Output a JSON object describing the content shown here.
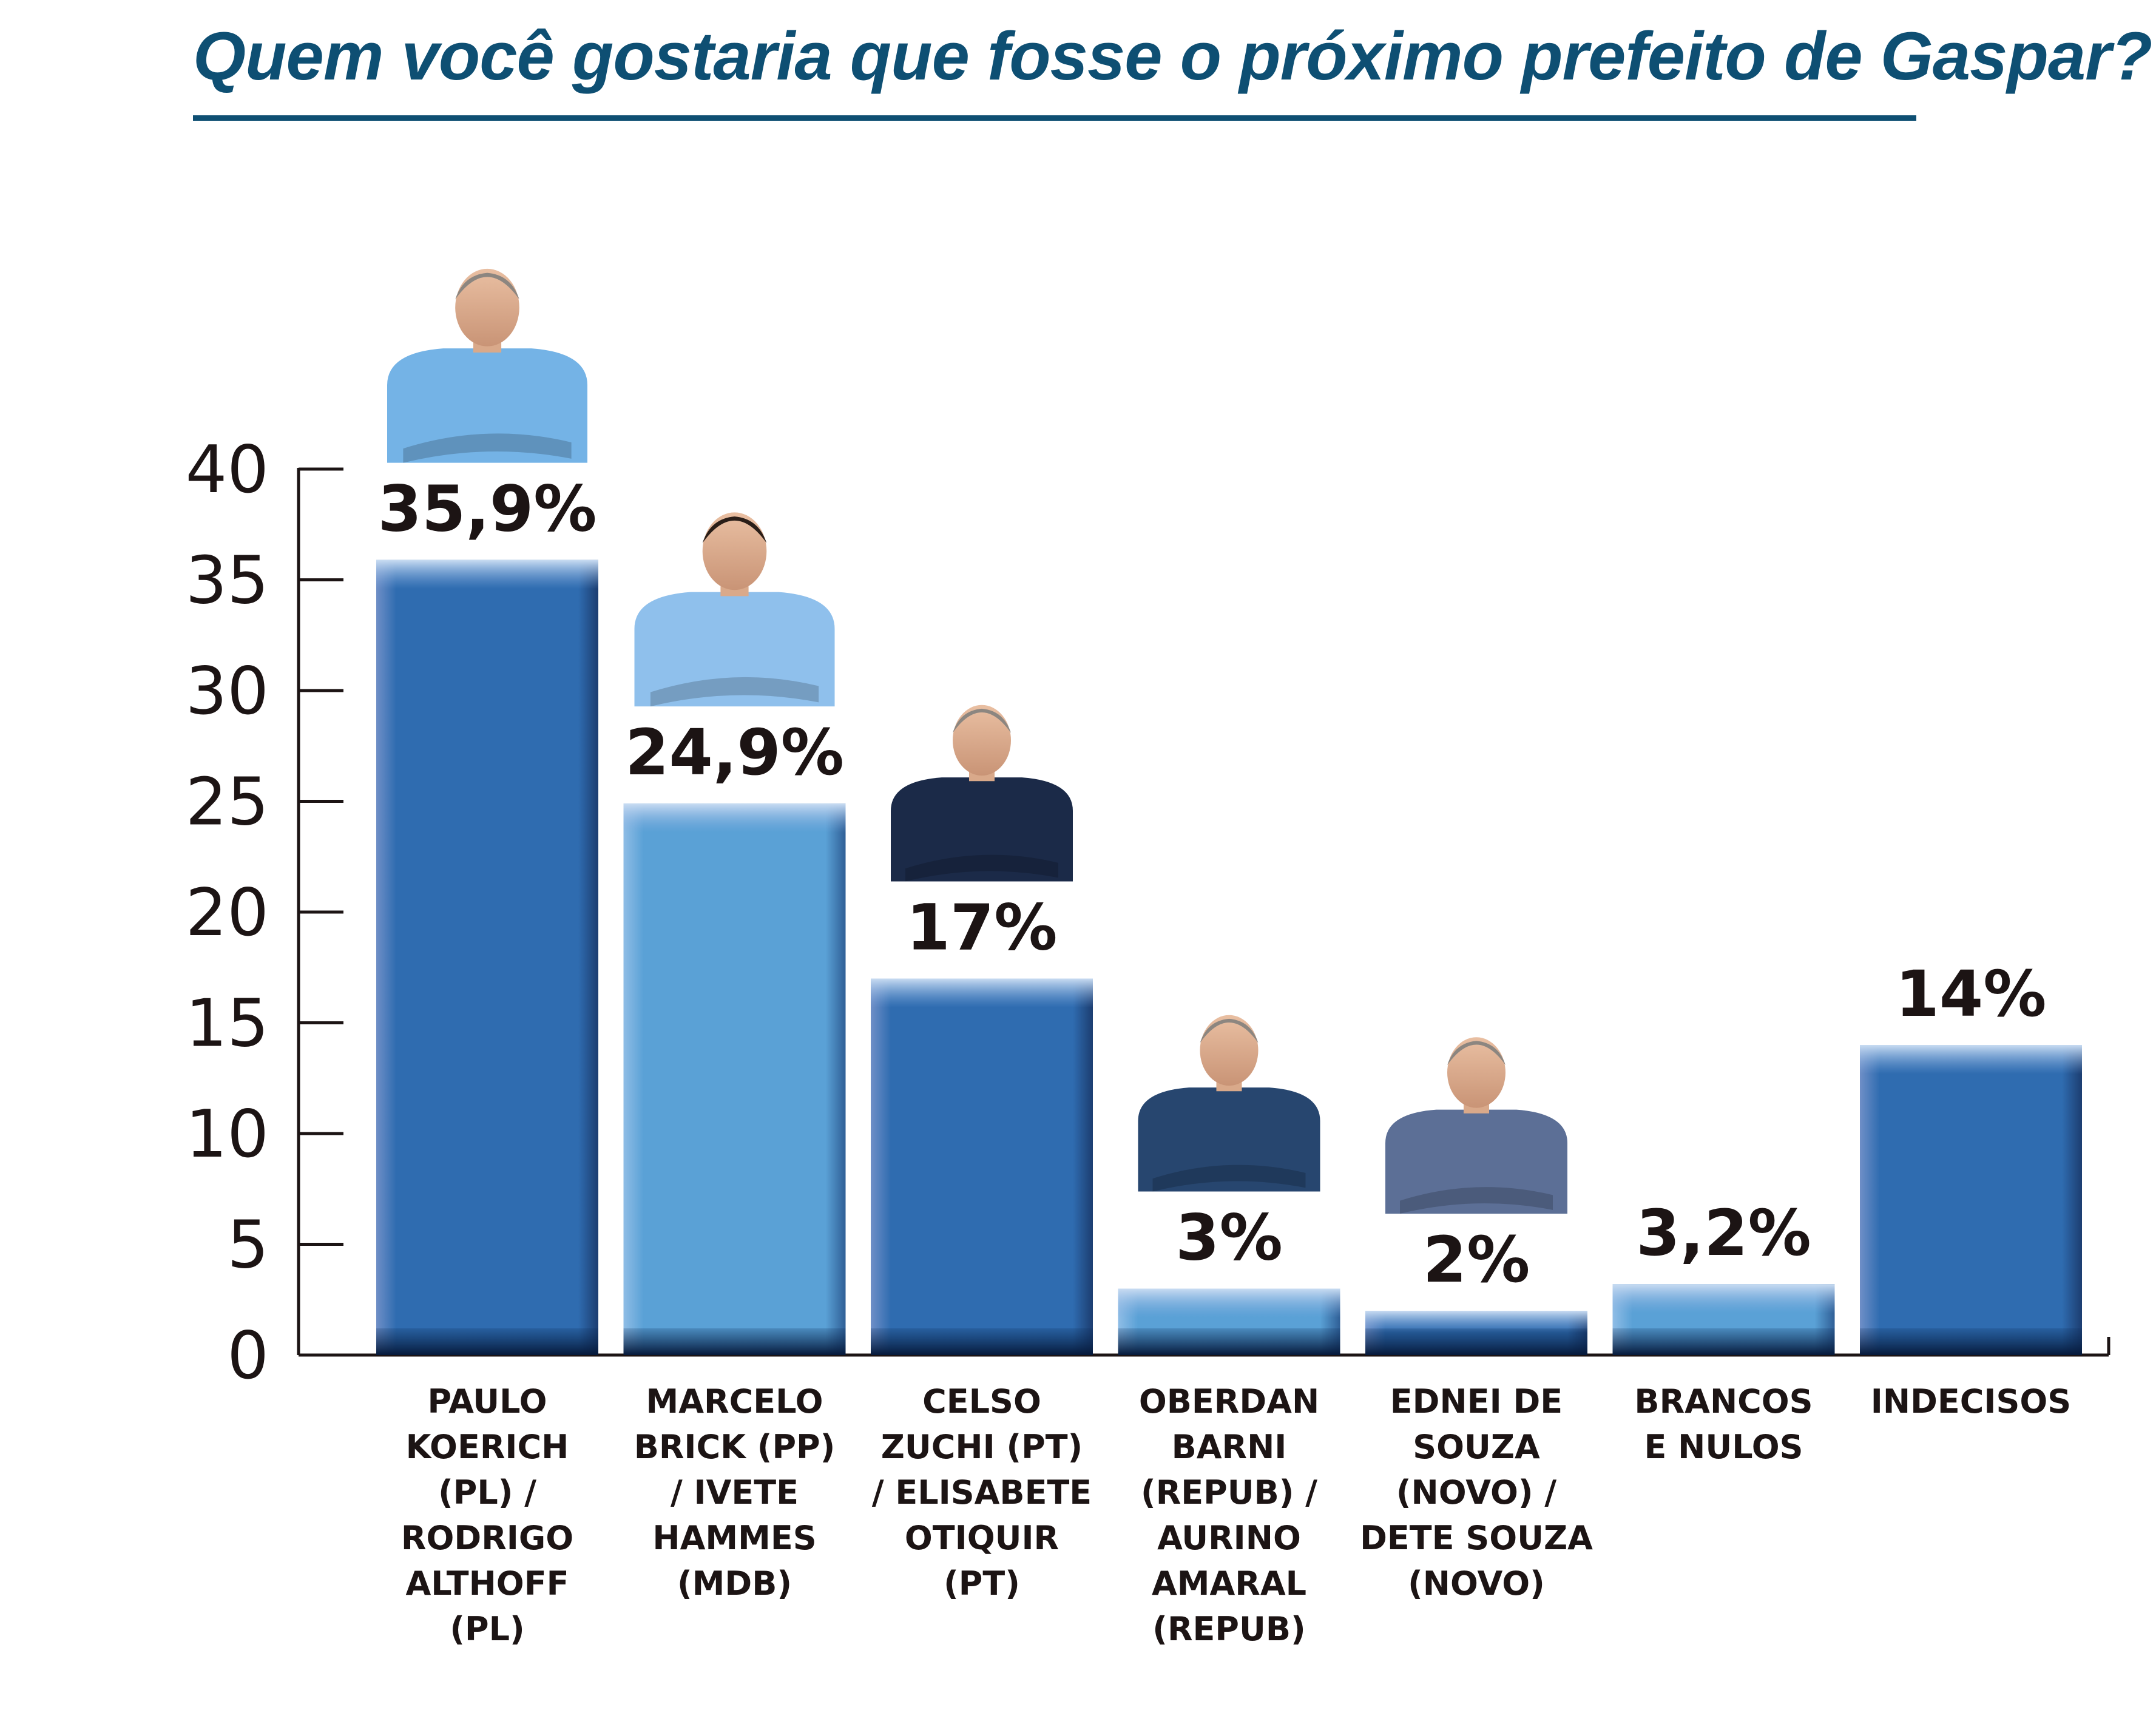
{
  "title": "Quem você gostaria que fosse o próximo prefeito de Gaspar?",
  "colors": {
    "title": "#0e4f73",
    "dark_bar": "#2f6cb0",
    "light_bar": "#5aa1d6",
    "axis": "#1c1414",
    "text": "#1c1414"
  },
  "chart_data": {
    "type": "bar",
    "ylim": [
      0,
      40
    ],
    "yticks": [
      0,
      5,
      10,
      15,
      20,
      25,
      30,
      35,
      40
    ],
    "grid": false,
    "legend": "none",
    "categories": [
      [
        "PAULO",
        "KOERICH",
        "(PL) /",
        "RODRIGO",
        "ALTHOFF",
        "(PL)"
      ],
      [
        "MARCELO",
        "BRICK (PP)",
        "/ IVETE",
        "HAMMES",
        "(MDB)"
      ],
      [
        "CELSO",
        "ZUCHI (PT)",
        "/ ELISABETE",
        "OTIQUIR",
        "(PT)"
      ],
      [
        "OBERDAN",
        "BARNI",
        "(REPUB) /",
        "AURINO",
        "AMARAL",
        "(REPUB)"
      ],
      [
        "EDNEI DE",
        "SOUZA",
        "(NOVO) /",
        "DETE SOUZA",
        "(NOVO)"
      ],
      [
        "BRANCOS",
        "E NULOS"
      ],
      [
        "INDECISOS"
      ]
    ],
    "values": [
      35.9,
      24.9,
      17,
      3,
      2,
      3.2,
      14
    ],
    "value_labels": [
      "35,9%",
      "24,9%",
      "17%",
      "3%",
      "2%",
      "3,2%",
      "14%"
    ],
    "bar_colors": [
      "#2f6cb0",
      "#5aa1d6",
      "#2f6cb0",
      "#5aa1d6",
      "#2f6cb0",
      "#5aa1d6",
      "#2f6cb0"
    ],
    "candidate_photo": [
      true,
      true,
      true,
      true,
      true,
      false,
      false
    ]
  }
}
